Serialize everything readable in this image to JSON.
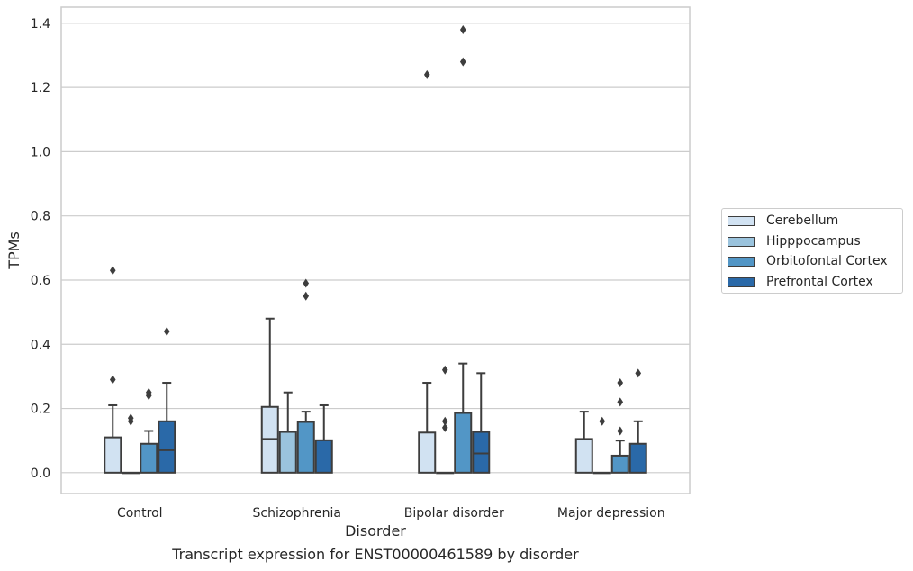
{
  "chart_data": {
    "type": "box",
    "xlabel": "Disorder",
    "ylabel": "TPMs",
    "ylim": [
      -0.065,
      1.45
    ],
    "yticks": [
      0.0,
      0.2,
      0.4,
      0.6,
      0.8,
      1.0,
      1.2,
      1.4
    ],
    "ytick_labels": [
      "0.0",
      "0.2",
      "0.4",
      "0.6",
      "0.8",
      "1.0",
      "1.2",
      "1.4"
    ],
    "grid": true,
    "legend_position": "right",
    "categories": [
      "Control",
      "Schizophrenia",
      "Bipolar disorder",
      "Major depression"
    ],
    "series": [
      {
        "name": "Cerebellum",
        "color": "#d1e2f2",
        "boxes": [
          {
            "whislo": 0,
            "q1": 0,
            "med": 0,
            "q3": 0.11,
            "whishi": 0.21,
            "fliers": [
              0.29,
              0.63
            ]
          },
          {
            "whislo": 0,
            "q1": 0,
            "med": 0.105,
            "q3": 0.205,
            "whishi": 0.48,
            "fliers": []
          },
          {
            "whislo": 0,
            "q1": 0,
            "med": 0,
            "q3": 0.125,
            "whishi": 0.28,
            "fliers": [
              1.24
            ]
          },
          {
            "whislo": 0,
            "q1": 0,
            "med": 0,
            "q3": 0.105,
            "whishi": 0.19,
            "fliers": []
          }
        ]
      },
      {
        "name": "Hipppocampus",
        "color": "#9ac3dd",
        "boxes": [
          {
            "whislo": 0,
            "q1": 0,
            "med": 0,
            "q3": 0,
            "whishi": 0,
            "fliers": [
              0.16,
              0.17
            ]
          },
          {
            "whislo": 0,
            "q1": 0,
            "med": 0,
            "q3": 0.127,
            "whishi": 0.25,
            "fliers": []
          },
          {
            "whislo": 0,
            "q1": 0,
            "med": 0,
            "q3": 0,
            "whishi": 0,
            "fliers": [
              0.14,
              0.16,
              0.32
            ]
          },
          {
            "whislo": 0,
            "q1": 0,
            "med": 0,
            "q3": 0,
            "whishi": 0,
            "fliers": [
              0.16
            ]
          }
        ]
      },
      {
        "name": "Orbitofontal Cortex",
        "color": "#5296c6",
        "boxes": [
          {
            "whislo": 0,
            "q1": 0,
            "med": 0,
            "q3": 0.09,
            "whishi": 0.13,
            "fliers": [
              0.24,
              0.25
            ]
          },
          {
            "whislo": 0,
            "q1": 0,
            "med": 0,
            "q3": 0.158,
            "whishi": 0.19,
            "fliers": [
              0.55,
              0.59
            ]
          },
          {
            "whislo": 0,
            "q1": 0,
            "med": 0,
            "q3": 0.186,
            "whishi": 0.34,
            "fliers": [
              1.28,
              1.38
            ]
          },
          {
            "whislo": 0,
            "q1": 0,
            "med": 0,
            "q3": 0.053,
            "whishi": 0.1,
            "fliers": [
              0.13,
              0.22,
              0.28
            ]
          }
        ]
      },
      {
        "name": "Prefrontal Cortex",
        "color": "#2a69a8",
        "boxes": [
          {
            "whislo": 0,
            "q1": 0,
            "med": 0.07,
            "q3": 0.16,
            "whishi": 0.28,
            "fliers": [
              0.44
            ]
          },
          {
            "whislo": 0,
            "q1": 0,
            "med": 0,
            "q3": 0.101,
            "whishi": 0.21,
            "fliers": []
          },
          {
            "whislo": 0,
            "q1": 0,
            "med": 0.06,
            "q3": 0.127,
            "whishi": 0.31,
            "fliers": []
          },
          {
            "whislo": 0,
            "q1": 0,
            "med": 0,
            "q3": 0.09,
            "whishi": 0.16,
            "fliers": [
              0.31
            ]
          }
        ]
      }
    ]
  },
  "caption": "Transcript expression for ENST00000461589 by disorder"
}
